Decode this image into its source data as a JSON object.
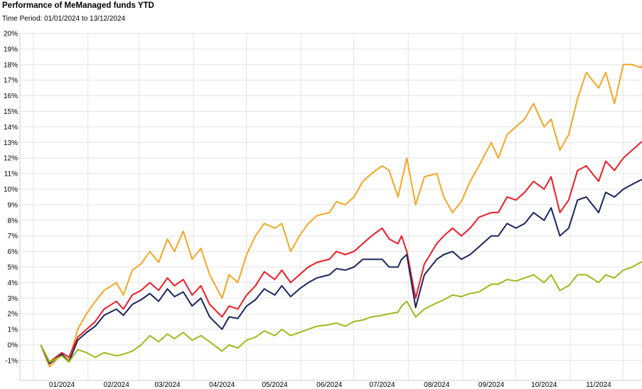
{
  "title": "Performance of MeManaged funds YTD",
  "subtitle": "Time Period: 01/01/2024 to 13/12/2024",
  "chart_data": {
    "type": "line",
    "title": "Performance of MeManaged funds YTD",
    "subtitle": "Time Period: 01/01/2024 to 13/12/2024",
    "xlabel": "",
    "ylabel": "",
    "x_tick_labels": [
      "01/2024",
      "02/2024",
      "03/2024",
      "04/2024",
      "05/2024",
      "06/2024",
      "07/2024",
      "08/2024",
      "09/2024",
      "10/2024",
      "11/2024"
    ],
    "y_tick_labels": [
      "-1%",
      "0%",
      "1%",
      "2%",
      "3%",
      "4%",
      "5%",
      "6%",
      "7%",
      "8%",
      "9%",
      "10%",
      "11%",
      "12%",
      "13%",
      "14%",
      "15%",
      "16%",
      "17%",
      "18%",
      "19%",
      "20%"
    ],
    "ylim": [
      -1.5,
      20
    ],
    "y_unit": "%",
    "grid": true,
    "legend": "none",
    "x": [
      "2023-12-20",
      "2023-12-25",
      "2024-01-01",
      "2024-01-05",
      "2024-01-10",
      "2024-01-15",
      "2024-01-20",
      "2024-01-25",
      "2024-02-01",
      "2024-02-05",
      "2024-02-10",
      "2024-02-15",
      "2024-02-20",
      "2024-02-25",
      "2024-03-01",
      "2024-03-05",
      "2024-03-10",
      "2024-03-15",
      "2024-03-20",
      "2024-03-25",
      "2024-04-01",
      "2024-04-05",
      "2024-04-10",
      "2024-04-15",
      "2024-04-20",
      "2024-04-25",
      "2024-05-01",
      "2024-05-05",
      "2024-05-10",
      "2024-05-15",
      "2024-05-20",
      "2024-05-25",
      "2024-06-01",
      "2024-06-05",
      "2024-06-10",
      "2024-06-15",
      "2024-06-20",
      "2024-06-25",
      "2024-07-01",
      "2024-07-05",
      "2024-07-10",
      "2024-07-12",
      "2024-07-15",
      "2024-07-20",
      "2024-07-25",
      "2024-08-01",
      "2024-08-05",
      "2024-08-10",
      "2024-08-15",
      "2024-08-20",
      "2024-08-25",
      "2024-09-01",
      "2024-09-05",
      "2024-09-10",
      "2024-09-15",
      "2024-09-20",
      "2024-09-25",
      "2024-10-01",
      "2024-10-05",
      "2024-10-10",
      "2024-10-15",
      "2024-10-20",
      "2024-10-25",
      "2024-11-01",
      "2024-11-05",
      "2024-11-10",
      "2024-11-15",
      "2024-11-20",
      "2024-11-25",
      "2024-12-01",
      "2024-12-05",
      "2024-12-10",
      "2024-12-13"
    ],
    "series": [
      {
        "color": "#F5A623",
        "values": [
          0,
          -1.4,
          -0.6,
          -1.0,
          1.0,
          2.0,
          2.8,
          3.5,
          4.0,
          3.2,
          4.8,
          5.2,
          6.0,
          5.3,
          6.8,
          6.0,
          7.3,
          5.5,
          6.2,
          4.5,
          3.0,
          4.5,
          4.0,
          5.8,
          7.0,
          7.8,
          7.5,
          7.8,
          6.0,
          7.0,
          7.8,
          8.3,
          8.5,
          9.2,
          9.0,
          9.5,
          10.5,
          11.0,
          11.5,
          11.2,
          9.5,
          10.5,
          12.0,
          9.0,
          10.8,
          11.0,
          9.5,
          8.5,
          9.2,
          10.5,
          11.5,
          13.0,
          12.0,
          13.5,
          14.0,
          14.5,
          15.5,
          14.0,
          14.5,
          12.5,
          13.5,
          15.8,
          17.5,
          16.5,
          17.5,
          15.5,
          18.0,
          18.0,
          17.8,
          19.0,
          19.3,
          19.5,
          19.4
        ]
      },
      {
        "color": "#EE1C25",
        "values": [
          0,
          -1.1,
          -0.5,
          -0.8,
          0.5,
          1.0,
          1.5,
          2.3,
          2.8,
          2.3,
          3.2,
          3.5,
          4.0,
          3.5,
          4.3,
          3.8,
          4.2,
          3.2,
          3.8,
          2.6,
          1.8,
          2.5,
          2.3,
          3.2,
          3.8,
          4.7,
          4.2,
          4.8,
          4.0,
          4.5,
          5.0,
          5.3,
          5.5,
          6.0,
          5.8,
          6.0,
          6.5,
          7.0,
          7.5,
          6.8,
          6.5,
          7.0,
          6.0,
          3.0,
          5.2,
          6.5,
          7.0,
          7.5,
          7.0,
          7.5,
          8.2,
          8.5,
          8.5,
          9.5,
          9.3,
          9.8,
          10.5,
          10.0,
          10.8,
          8.5,
          9.3,
          11.2,
          11.5,
          10.5,
          11.8,
          11.2,
          12.0,
          12.5,
          13.0,
          13.3,
          13.5,
          13.6,
          13.1
        ]
      },
      {
        "color": "#1A2560",
        "values": [
          0,
          -1.2,
          -0.6,
          -1.1,
          0.3,
          0.8,
          1.2,
          1.9,
          2.3,
          1.9,
          2.6,
          2.9,
          3.3,
          2.8,
          3.6,
          3.1,
          3.4,
          2.5,
          3.0,
          1.8,
          1.0,
          1.8,
          1.7,
          2.5,
          2.9,
          3.6,
          3.2,
          3.8,
          3.1,
          3.6,
          4.0,
          4.3,
          4.5,
          4.9,
          4.8,
          5.0,
          5.5,
          5.5,
          5.5,
          5.0,
          5.0,
          5.5,
          5.8,
          2.4,
          4.5,
          5.5,
          5.8,
          6.0,
          5.5,
          5.8,
          6.3,
          7.0,
          7.0,
          7.8,
          7.5,
          7.8,
          8.5,
          8.0,
          8.8,
          7.0,
          7.5,
          9.3,
          9.5,
          8.5,
          9.8,
          9.5,
          10.0,
          10.3,
          10.6,
          10.8,
          11.0,
          11.1,
          10.8
        ]
      },
      {
        "color": "#9CBB1B",
        "values": [
          0,
          -1.1,
          -0.7,
          -1.1,
          -0.3,
          -0.5,
          -0.8,
          -0.5,
          -0.7,
          -0.6,
          -0.4,
          0.0,
          0.6,
          0.2,
          0.7,
          0.4,
          0.8,
          0.3,
          0.6,
          0.2,
          -0.4,
          0.0,
          -0.2,
          0.3,
          0.5,
          0.9,
          0.6,
          1.0,
          0.6,
          0.8,
          1.0,
          1.2,
          1.3,
          1.4,
          1.2,
          1.5,
          1.6,
          1.8,
          1.9,
          2.0,
          2.1,
          2.5,
          2.8,
          1.8,
          2.3,
          2.7,
          2.9,
          3.2,
          3.1,
          3.3,
          3.4,
          3.9,
          3.9,
          4.2,
          4.1,
          4.3,
          4.5,
          4.0,
          4.5,
          3.5,
          3.8,
          4.5,
          4.5,
          4.0,
          4.5,
          4.3,
          4.8,
          5.0,
          5.3,
          5.5,
          5.6,
          5.7,
          5.2
        ]
      }
    ]
  }
}
